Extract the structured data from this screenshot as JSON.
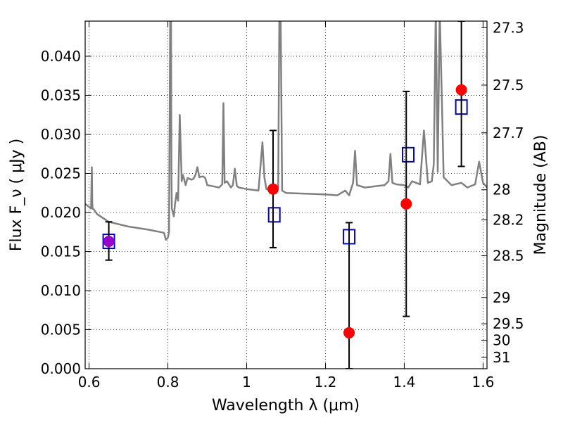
{
  "chart_data": {
    "type": "scatter",
    "title": "",
    "xlabel": "Wavelength  λ (μm)",
    "ylabel": "Flux  F_ν  ( μJy )",
    "y2label": "Magnitude (AB)",
    "xlim": [
      0.59,
      1.61
    ],
    "ylim": [
      0.0,
      0.0445
    ],
    "x_ticks": [
      0.6,
      0.8,
      1.0,
      1.2,
      1.4,
      1.6
    ],
    "x_tick_labels": [
      "0.6",
      "0.8",
      "1",
      "1.2",
      "1.4",
      "1.6"
    ],
    "y_ticks": [
      0.0,
      0.005,
      0.01,
      0.015,
      0.02,
      0.025,
      0.03,
      0.035,
      0.04
    ],
    "y_tick_labels": [
      "0.000",
      "0.005",
      "0.010",
      "0.015",
      "0.020",
      "0.025",
      "0.030",
      "0.035",
      "0.040"
    ],
    "mag_ticks": [
      27.3,
      27.5,
      27.7,
      28,
      28.2,
      28.5,
      29,
      29.5,
      30,
      31
    ],
    "mag_tick_labels": [
      "27.3",
      "27.5",
      "27.7",
      "28",
      "28.2",
      "28.5",
      "29",
      "29.5",
      "30",
      "31"
    ],
    "grid": true,
    "colors": {
      "model": "#808080",
      "observed": "#ff0000",
      "model_band": "#0000cc",
      "overlap": "#9900cc",
      "errorbar": "#000000"
    },
    "series": [
      {
        "marker": "line",
        "color": "#808080",
        "x": [
          0.59,
          0.6,
          0.605,
          0.607,
          0.608,
          0.609,
          0.612,
          0.62,
          0.65,
          0.7,
          0.75,
          0.78,
          0.79,
          0.795,
          0.8,
          0.803,
          0.806,
          0.808,
          0.809,
          0.81,
          0.815,
          0.818,
          0.822,
          0.826,
          0.83,
          0.835,
          0.838,
          0.84,
          0.845,
          0.85,
          0.855,
          0.86,
          0.865,
          0.87,
          0.875,
          0.88,
          0.885,
          0.89,
          0.895,
          0.9,
          0.91,
          0.93,
          0.938,
          0.941,
          0.944,
          0.95,
          0.96,
          0.965,
          0.97,
          0.975,
          0.98,
          1.0,
          1.03,
          1.04,
          1.045,
          1.05,
          1.06,
          1.08,
          1.083,
          1.086,
          1.09,
          1.1,
          1.15,
          1.2,
          1.23,
          1.25,
          1.26,
          1.27,
          1.275,
          1.28,
          1.3,
          1.35,
          1.36,
          1.365,
          1.37,
          1.38,
          1.4,
          1.41,
          1.42,
          1.43,
          1.44,
          1.45,
          1.46,
          1.47,
          1.475,
          1.48,
          1.485,
          1.49,
          1.495,
          1.5,
          1.52,
          1.545,
          1.55,
          1.56,
          1.58,
          1.59,
          1.6,
          1.61
        ],
        "y": [
          0.0211,
          0.0207,
          0.0205,
          0.0258,
          0.0212,
          0.0205,
          0.0204,
          0.0198,
          0.0188,
          0.0182,
          0.0178,
          0.0175,
          0.0174,
          0.0165,
          0.0168,
          0.0175,
          0.046,
          0.045,
          0.025,
          0.0205,
          0.0195,
          0.021,
          0.0225,
          0.0215,
          0.0325,
          0.024,
          0.0248,
          0.0245,
          0.0235,
          0.0244,
          0.0243,
          0.0242,
          0.0243,
          0.0248,
          0.0258,
          0.0245,
          0.0246,
          0.0246,
          0.0244,
          0.0235,
          0.0234,
          0.0232,
          0.0236,
          0.034,
          0.0238,
          0.024,
          0.0232,
          0.0235,
          0.0256,
          0.0234,
          0.0232,
          0.023,
          0.0228,
          0.029,
          0.0245,
          0.023,
          0.0228,
          0.0232,
          0.046,
          0.046,
          0.0228,
          0.0225,
          0.0224,
          0.0223,
          0.0222,
          0.0228,
          0.0222,
          0.0238,
          0.0279,
          0.0235,
          0.0232,
          0.0235,
          0.024,
          0.0275,
          0.0238,
          0.0236,
          0.0235,
          0.0232,
          0.024,
          0.0238,
          0.0236,
          0.0305,
          0.0238,
          0.024,
          0.0262,
          0.046,
          0.0252,
          0.046,
          0.0355,
          0.0245,
          0.0235,
          0.0238,
          0.0236,
          0.0232,
          0.0236,
          0.0265,
          0.0238,
          0.0232
        ]
      },
      {
        "marker": "square",
        "color": "#0000cc",
        "x": [
          0.65,
          1.07,
          1.26,
          1.41,
          1.545
        ],
        "y": [
          0.0163,
          0.0197,
          0.0169,
          0.0274,
          0.0335
        ]
      },
      {
        "marker": "circle",
        "color": "#ff0000",
        "x": [
          0.65,
          1.067,
          1.26,
          1.405,
          1.545
        ],
        "y": [
          0.0163,
          0.023,
          0.0046,
          0.0211,
          0.0357
        ],
        "yerr_low": [
          0.0139,
          0.0155,
          0.0,
          0.0067,
          0.0259
        ],
        "yerr_high": [
          0.0188,
          0.0305,
          0.0187,
          0.0355,
          0.0445
        ]
      }
    ]
  }
}
